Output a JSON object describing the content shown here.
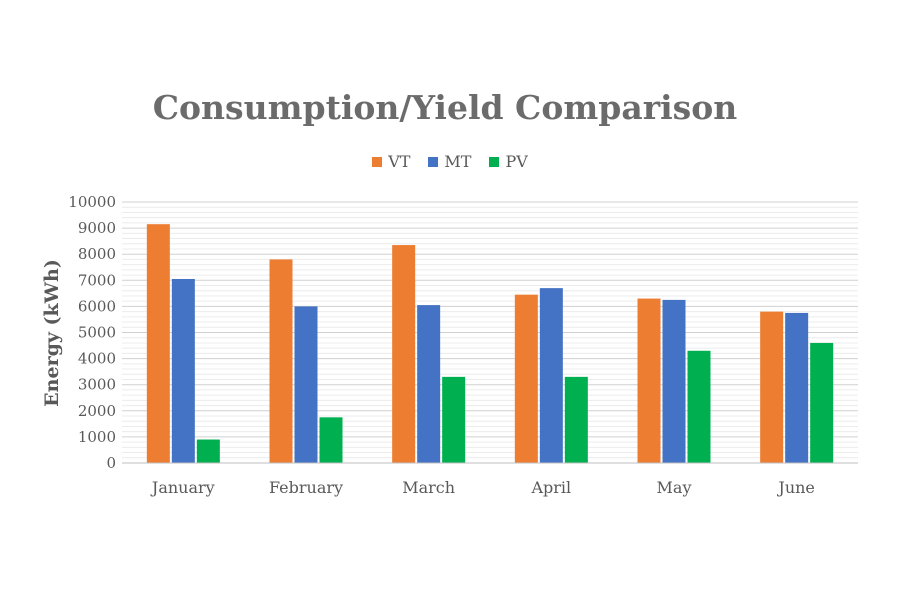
{
  "chart_data": {
    "type": "bar",
    "title": "Consumption/Yield Comparison",
    "ylabel": "Energy (kWh)",
    "xlabel": "",
    "categories": [
      "January",
      "February",
      "March",
      "April",
      "May",
      "June"
    ],
    "ylim": [
      0,
      10000
    ],
    "yticks": [
      0,
      1000,
      2000,
      3000,
      4000,
      5000,
      6000,
      7000,
      8000,
      9000,
      10000
    ],
    "legend_position": "top-center",
    "grid": true,
    "series": [
      {
        "name": "VT",
        "color": "#ED7D31",
        "values": [
          9150,
          7800,
          8350,
          6450,
          6300,
          5800
        ]
      },
      {
        "name": "MT",
        "color": "#4472C4",
        "values": [
          7050,
          6000,
          6050,
          6700,
          6250,
          5750
        ]
      },
      {
        "name": "PV",
        "color": "#00B050",
        "values": [
          900,
          1750,
          3300,
          3300,
          4300,
          4600
        ]
      }
    ]
  }
}
